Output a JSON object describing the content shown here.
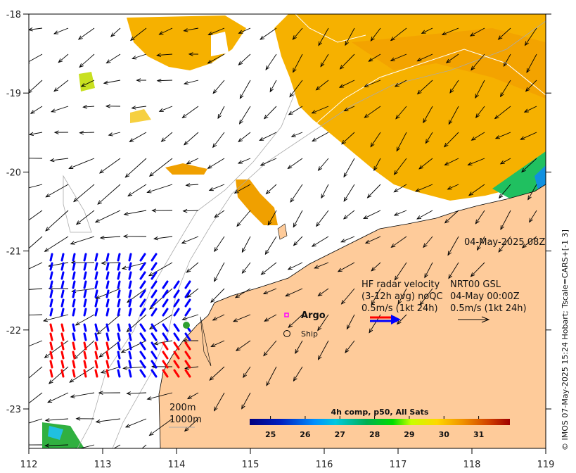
{
  "axes": {
    "x_ticks": [
      "112",
      "113",
      "114",
      "115",
      "116",
      "117",
      "118",
      "119"
    ],
    "y_ticks": [
      "-18",
      "-19",
      "-20",
      "-21",
      "-22",
      "-23"
    ]
  },
  "timestamp": "04-May-2025 08Z",
  "legend": {
    "hf_line1": "HF radar velocity",
    "hf_line2": "(3-12h avg) noQC",
    "hf_line3": "0.5m/s (1kt 24h)",
    "model_line1": "NRT00 GSL",
    "model_line2": "04-May 00:00Z",
    "model_line3": "0.5m/s (1kt 24h)",
    "argo": "Argo",
    "ship": "Ship",
    "contour_200": "200m",
    "contour_1000": "1000m"
  },
  "colorbar": {
    "title": "4h comp, p50, All Sats",
    "ticks": [
      "25",
      "26",
      "27",
      "28",
      "29",
      "30",
      "31"
    ],
    "range": [
      24.4,
      31.9
    ]
  },
  "credit": "© IMOS 07-May-2025 15:24 Hobart; Tscale=CARS+[-1 3]",
  "colors": {
    "land": "#fecb9a",
    "sst_warm": "#f5b400",
    "hf_blue": "#0000ff",
    "hf_red": "#ff0000"
  }
}
